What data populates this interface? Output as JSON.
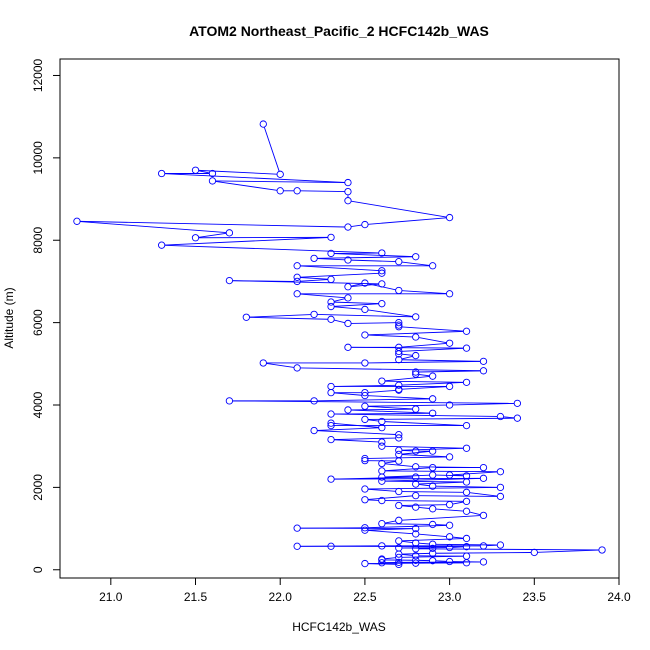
{
  "chart_data": {
    "type": "line",
    "title": "ATOM2 Northeast_Pacific_2 HCFC142b_WAS",
    "xlabel": "HCFC142b_WAS",
    "ylabel": "Altitude (m)",
    "xlim": [
      20.7,
      24.0
    ],
    "ylim": [
      -200,
      12400
    ],
    "xticks": [
      "21.0",
      "21.5",
      "22.0",
      "22.5",
      "23.0",
      "23.5",
      "24.0"
    ],
    "yticks": [
      "0",
      "2000",
      "4000",
      "6000",
      "8000",
      "10000",
      "12000"
    ],
    "series_color": "#0000ff",
    "points": [
      [
        21.9,
        10820
      ],
      [
        22.0,
        9600
      ],
      [
        21.5,
        9700
      ],
      [
        21.6,
        9620
      ],
      [
        21.3,
        9620
      ],
      [
        22.4,
        9400
      ],
      [
        21.6,
        9440
      ],
      [
        22.0,
        9200
      ],
      [
        22.1,
        9200
      ],
      [
        22.4,
        9180
      ],
      [
        22.4,
        8960
      ],
      [
        23.0,
        8550
      ],
      [
        22.5,
        8380
      ],
      [
        22.4,
        8320
      ],
      [
        20.8,
        8460
      ],
      [
        21.7,
        8180
      ],
      [
        21.5,
        8060
      ],
      [
        22.3,
        8070
      ],
      [
        21.3,
        7880
      ],
      [
        22.6,
        7690
      ],
      [
        22.3,
        7680
      ],
      [
        22.8,
        7600
      ],
      [
        22.2,
        7560
      ],
      [
        22.4,
        7520
      ],
      [
        22.7,
        7480
      ],
      [
        22.9,
        7380
      ],
      [
        22.1,
        7380
      ],
      [
        22.6,
        7260
      ],
      [
        22.6,
        7200
      ],
      [
        22.1,
        7100
      ],
      [
        22.3,
        7050
      ],
      [
        22.1,
        7000
      ],
      [
        21.7,
        7020
      ],
      [
        22.6,
        6940
      ],
      [
        22.4,
        6870
      ],
      [
        22.5,
        6960
      ],
      [
        22.7,
        6780
      ],
      [
        23.0,
        6700
      ],
      [
        22.1,
        6700
      ],
      [
        22.4,
        6600
      ],
      [
        22.3,
        6500
      ],
      [
        22.6,
        6460
      ],
      [
        22.3,
        6390
      ],
      [
        22.5,
        6320
      ],
      [
        22.8,
        6140
      ],
      [
        22.2,
        6200
      ],
      [
        21.8,
        6130
      ],
      [
        22.3,
        6080
      ],
      [
        22.4,
        5980
      ],
      [
        22.7,
        6000
      ],
      [
        22.7,
        5940
      ],
      [
        22.7,
        5900
      ],
      [
        23.1,
        5790
      ],
      [
        22.5,
        5700
      ],
      [
        22.8,
        5650
      ],
      [
        23.0,
        5500
      ],
      [
        22.7,
        5400
      ],
      [
        22.4,
        5400
      ],
      [
        23.1,
        5380
      ],
      [
        22.7,
        5300
      ],
      [
        22.7,
        5240
      ],
      [
        22.8,
        5200
      ],
      [
        22.7,
        5100
      ],
      [
        23.2,
        5060
      ],
      [
        22.5,
        5020
      ],
      [
        21.9,
        5020
      ],
      [
        22.1,
        4900
      ],
      [
        23.2,
        4830
      ],
      [
        22.8,
        4800
      ],
      [
        22.8,
        4750
      ],
      [
        22.9,
        4700
      ],
      [
        22.6,
        4580
      ],
      [
        23.1,
        4550
      ],
      [
        22.7,
        4480
      ],
      [
        22.3,
        4450
      ],
      [
        23.0,
        4450
      ],
      [
        22.7,
        4380
      ],
      [
        22.7,
        4360
      ],
      [
        22.5,
        4300
      ],
      [
        22.3,
        4300
      ],
      [
        22.5,
        4230
      ],
      [
        22.9,
        4150
      ],
      [
        22.2,
        4100
      ],
      [
        21.7,
        4100
      ],
      [
        23.4,
        4040
      ],
      [
        23.0,
        4000
      ],
      [
        22.5,
        3970
      ],
      [
        22.8,
        3900
      ],
      [
        22.4,
        3880
      ],
      [
        22.9,
        3800
      ],
      [
        22.3,
        3780
      ],
      [
        23.3,
        3720
      ],
      [
        23.4,
        3680
      ],
      [
        22.5,
        3650
      ],
      [
        22.6,
        3600
      ],
      [
        23.1,
        3500
      ],
      [
        22.3,
        3500
      ],
      [
        22.3,
        3560
      ],
      [
        22.6,
        3450
      ],
      [
        22.2,
        3380
      ],
      [
        22.7,
        3280
      ],
      [
        22.7,
        3200
      ],
      [
        22.3,
        3160
      ],
      [
        22.6,
        3100
      ],
      [
        22.6,
        3000
      ],
      [
        23.1,
        2950
      ],
      [
        22.7,
        2900
      ],
      [
        22.8,
        2880
      ],
      [
        22.9,
        2880
      ],
      [
        22.7,
        2800
      ],
      [
        23.0,
        2740
      ],
      [
        22.5,
        2700
      ],
      [
        22.5,
        2650
      ],
      [
        22.7,
        2640
      ],
      [
        22.6,
        2580
      ],
      [
        22.8,
        2500
      ],
      [
        23.2,
        2480
      ],
      [
        22.9,
        2480
      ],
      [
        22.6,
        2400
      ],
      [
        23.3,
        2380
      ],
      [
        23.0,
        2300
      ],
      [
        23.1,
        2280
      ],
      [
        22.9,
        2300
      ],
      [
        22.6,
        2250
      ],
      [
        22.8,
        2250
      ],
      [
        22.3,
        2200
      ],
      [
        23.2,
        2220
      ],
      [
        22.6,
        2150
      ],
      [
        23.1,
        2130
      ],
      [
        22.8,
        2080
      ],
      [
        22.9,
        2030
      ],
      [
        23.3,
        2000
      ],
      [
        22.5,
        1960
      ],
      [
        22.7,
        1900
      ],
      [
        23.1,
        1880
      ],
      [
        23.3,
        1780
      ],
      [
        22.8,
        1800
      ],
      [
        22.5,
        1700
      ],
      [
        22.6,
        1680
      ],
      [
        23.1,
        1660
      ],
      [
        23.0,
        1580
      ],
      [
        22.7,
        1560
      ],
      [
        22.8,
        1520
      ],
      [
        22.9,
        1480
      ],
      [
        23.1,
        1420
      ],
      [
        23.2,
        1320
      ],
      [
        22.7,
        1200
      ],
      [
        22.6,
        1120
      ],
      [
        22.9,
        1100
      ],
      [
        23.0,
        1080
      ],
      [
        22.5,
        1020
      ],
      [
        22.1,
        1010
      ],
      [
        22.8,
        1000
      ],
      [
        22.5,
        960
      ],
      [
        22.8,
        870
      ],
      [
        23.0,
        800
      ],
      [
        23.1,
        760
      ],
      [
        22.7,
        700
      ],
      [
        22.8,
        650
      ],
      [
        22.9,
        620
      ],
      [
        23.3,
        600
      ],
      [
        23.2,
        580
      ],
      [
        22.6,
        580
      ],
      [
        22.1,
        570
      ],
      [
        22.3,
        570
      ],
      [
        23.1,
        560
      ],
      [
        23.0,
        540
      ],
      [
        22.7,
        530
      ],
      [
        22.9,
        520
      ],
      [
        22.8,
        510
      ],
      [
        23.9,
        480
      ],
      [
        23.5,
        420
      ],
      [
        22.9,
        400
      ],
      [
        22.7,
        380
      ],
      [
        22.8,
        340
      ],
      [
        23.1,
        330
      ],
      [
        22.7,
        300
      ],
      [
        22.6,
        260
      ],
      [
        22.6,
        240
      ],
      [
        22.8,
        230
      ],
      [
        22.9,
        220
      ],
      [
        23.0,
        200
      ],
      [
        23.2,
        190
      ],
      [
        22.7,
        180
      ],
      [
        22.6,
        170
      ],
      [
        23.1,
        170
      ],
      [
        22.8,
        160
      ],
      [
        22.5,
        150
      ],
      [
        22.7,
        130
      ]
    ]
  }
}
